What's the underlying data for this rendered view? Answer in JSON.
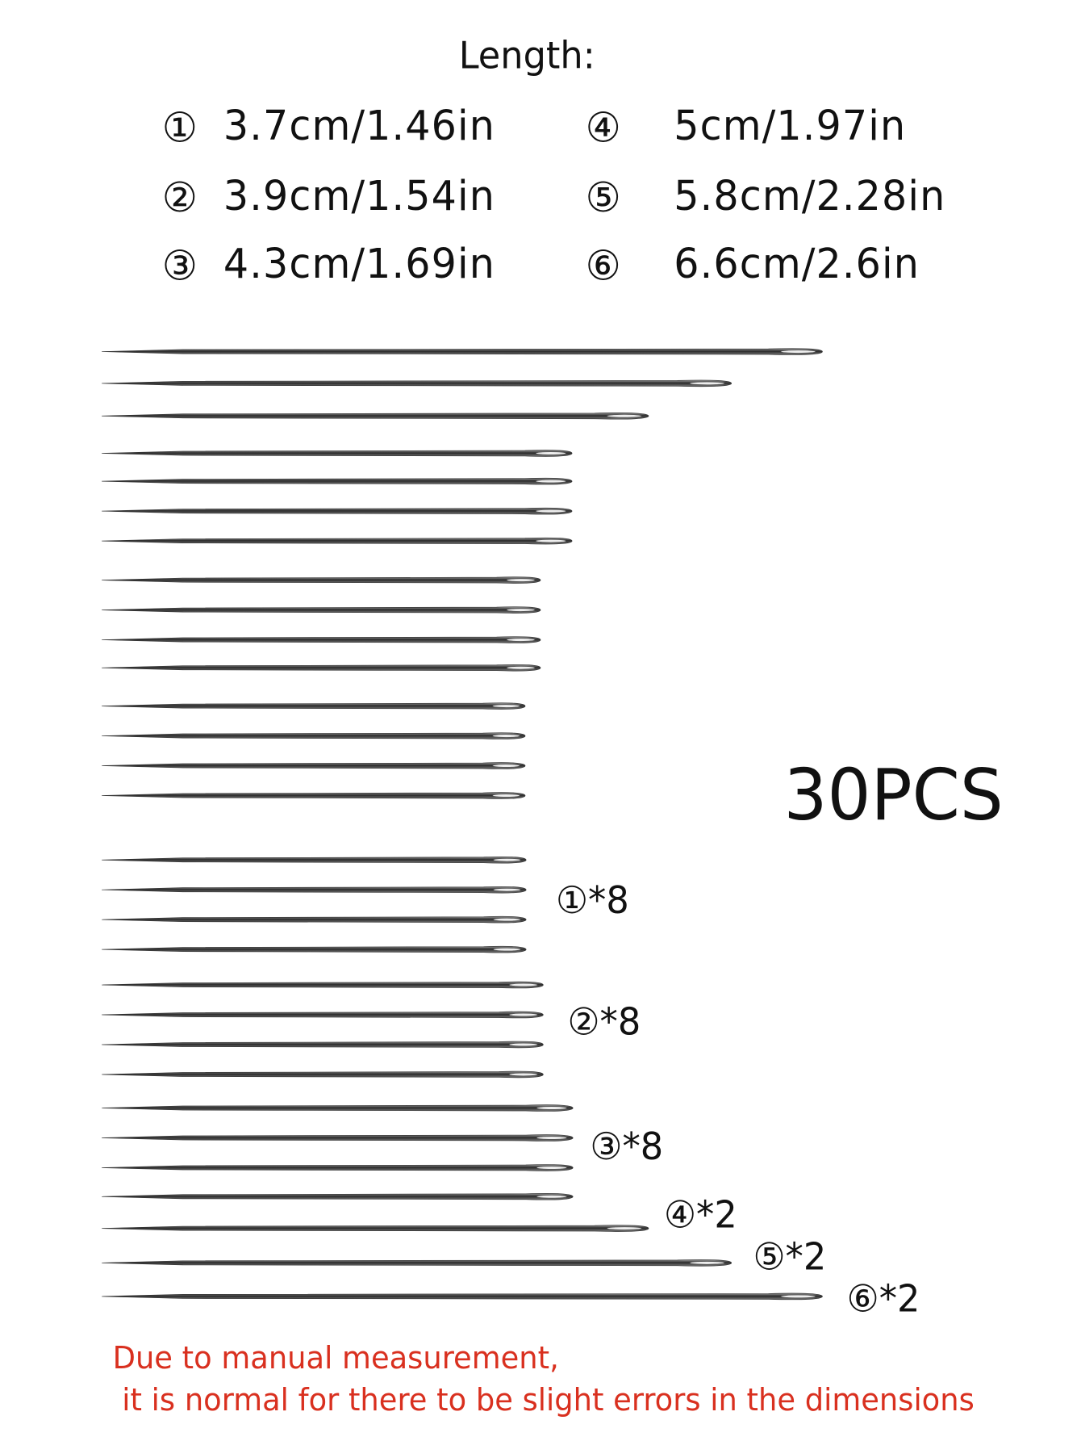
{
  "header": {
    "title": "Length:"
  },
  "sizes": [
    {
      "marker": "①",
      "length": "3.7cm/1.46in"
    },
    {
      "marker": "②",
      "length": "3.9cm/1.54in"
    },
    {
      "marker": "③",
      "length": "4.3cm/1.69in"
    },
    {
      "marker": "④",
      "length": "5cm/1.97in"
    },
    {
      "marker": "⑤",
      "length": "5.8cm/2.28in"
    },
    {
      "marker": "⑥",
      "length": "6.6cm/2.6in"
    }
  ],
  "total": "30PCS",
  "counts": [
    "①*8",
    "②*8",
    "③*8",
    "④*2",
    "⑤*2",
    "⑥*2"
  ],
  "note": [
    "Due to manual measurement,",
    " it is normal for there to be slight errors in the dimensions"
  ]
}
